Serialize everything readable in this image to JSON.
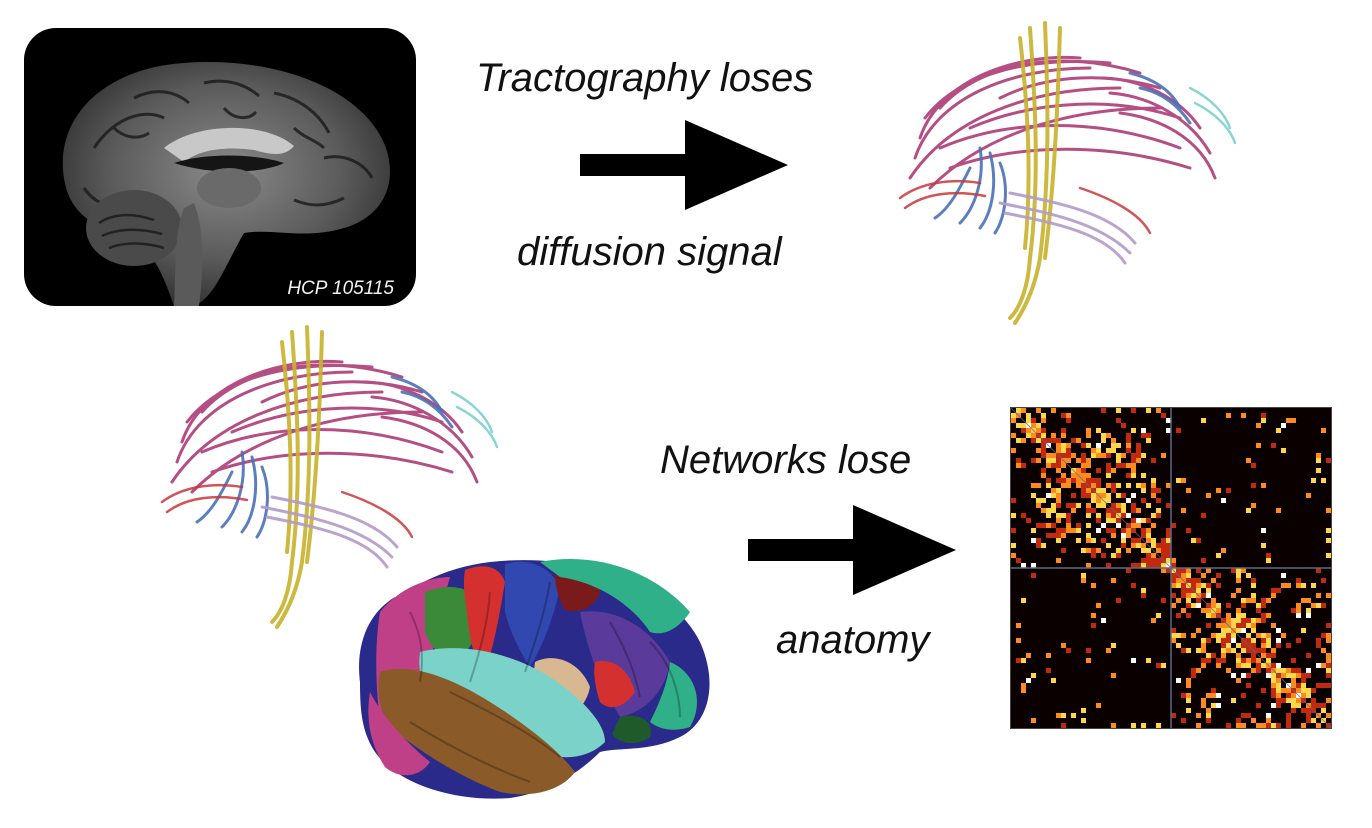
{
  "captions": {
    "tractography_top": "Tractography loses",
    "tractography_bottom": "diffusion signal",
    "networks_top": "Networks lose",
    "networks_bottom": "anatomy"
  },
  "mri": {
    "label": "HCP 105115"
  },
  "colors": {
    "arrow": "#000000",
    "tract_magenta": "#a8306e",
    "tract_blue": "#4a72b8",
    "tract_yellow": "#c9b22c",
    "tract_lavender": "#b49ac8",
    "tract_red": "#c8383a",
    "tract_cyan": "#7fd0d0",
    "matrix_bg": "#0b0000",
    "matrix_hot": "#ffd84a",
    "matrix_mid": "#ff8a1e",
    "matrix_low": "#c22a10",
    "cortex_pink": "#c04088",
    "cortex_brown": "#8a5a28",
    "cortex_cyan": "#7ad2c8",
    "cortex_green": "#3a8a3a",
    "cortex_red": "#d43030",
    "cortex_blue": "#3048b0",
    "cortex_purple": "#5a3a9a",
    "cortex_teal": "#30b088",
    "cortex_darkred": "#7a1a1a",
    "cortex_tan": "#d8b890",
    "cortex_navy": "#2a2a8a"
  }
}
